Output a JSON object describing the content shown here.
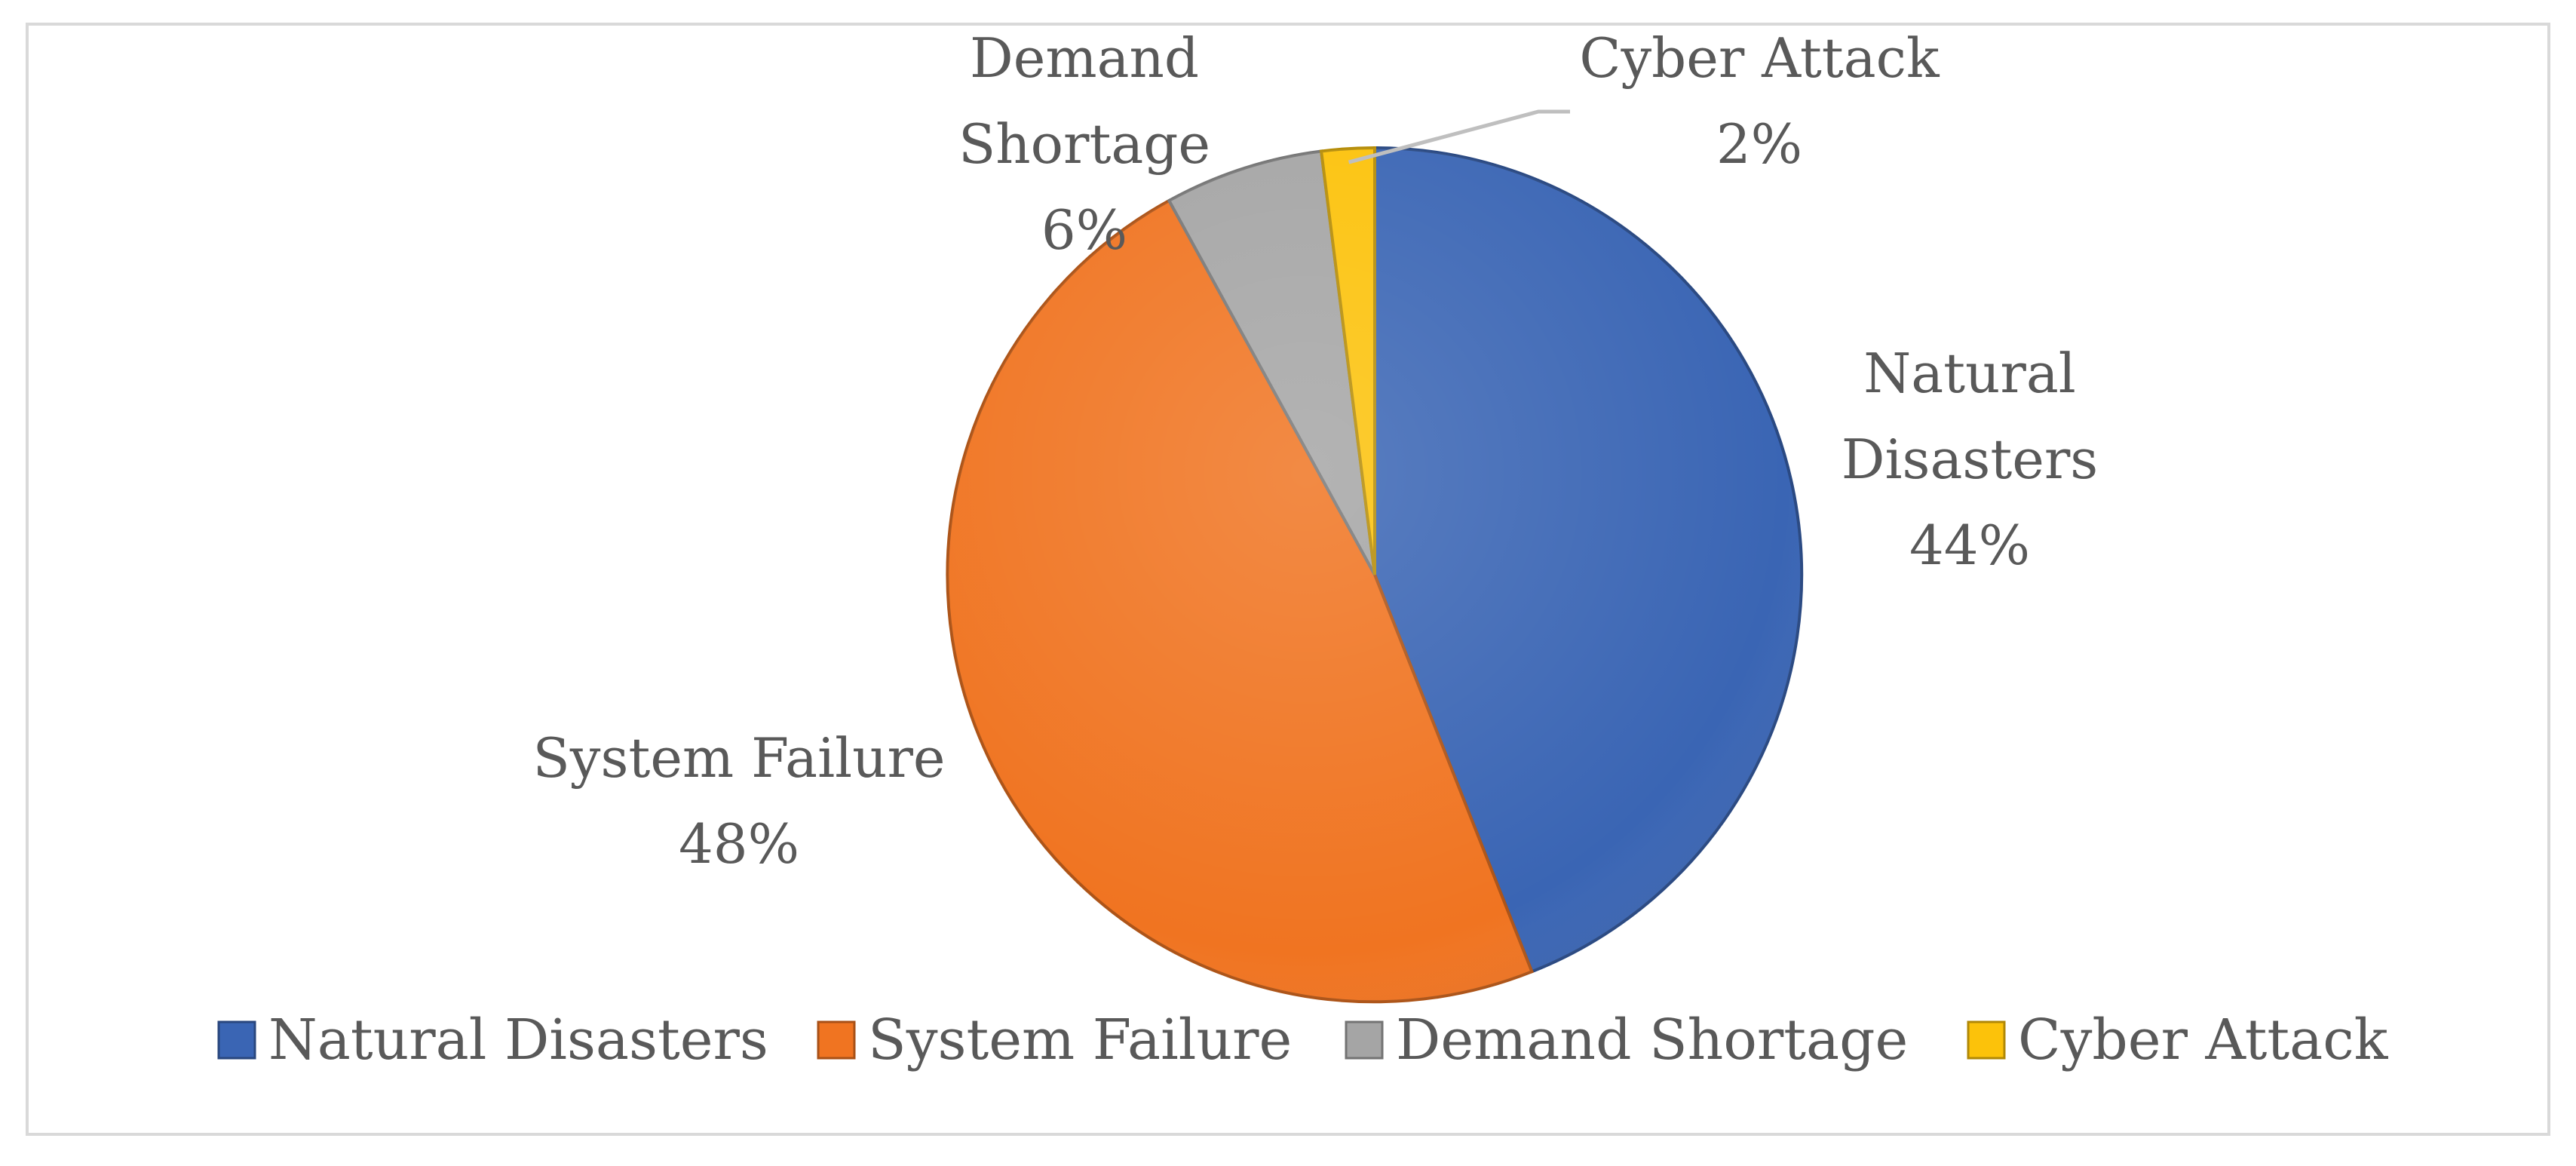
{
  "chart_data": {
    "type": "pie",
    "title": "",
    "slices": [
      {
        "name": "Natural Disasters",
        "percent": 44,
        "value_label": "44%",
        "color": "#3a65b4"
      },
      {
        "name": "System Failure",
        "percent": 48,
        "value_label": "48%",
        "color": "#f07421"
      },
      {
        "name": "Demand Shortage",
        "percent": 6,
        "value_label": "6%",
        "color": "#a5a5a5"
      },
      {
        "name": "Cyber Attack",
        "percent": 2,
        "value_label": "2%",
        "color": "#fcc20a"
      }
    ],
    "start": "12 o'clock",
    "direction": "clockwise",
    "legend_position": "bottom",
    "leader_line_color": "#bfbfbf",
    "label_color": "#595959"
  }
}
